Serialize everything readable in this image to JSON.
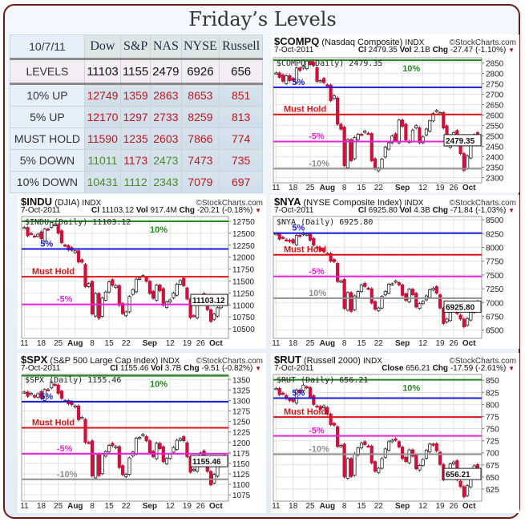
{
  "title": "Friday’s Levels",
  "levels_table": {
    "date": "10/7/11",
    "columns": [
      "Dow",
      "S&P",
      "NAS",
      "NYSE",
      "Russell"
    ],
    "levels_label": "LEVELS",
    "levels": [
      "11103",
      "1155",
      "2479",
      "6926",
      "656"
    ],
    "rows": [
      {
        "label": "10% UP",
        "values": [
          "12749",
          "1359",
          "2863",
          "8653",
          "851"
        ],
        "colors": [
          "red",
          "red",
          "red",
          "red",
          "red"
        ]
      },
      {
        "label": "5% UP",
        "values": [
          "12170",
          "1297",
          "2733",
          "8259",
          "813"
        ],
        "colors": [
          "red",
          "red",
          "red",
          "red",
          "red"
        ]
      },
      {
        "label": "MUST HOLD",
        "values": [
          "11590",
          "1235",
          "2603",
          "7866",
          "774"
        ],
        "colors": [
          "red",
          "red",
          "red",
          "red",
          "red"
        ]
      },
      {
        "label": "5% DOWN",
        "values": [
          "11011",
          "1173",
          "2473",
          "7473",
          "735"
        ],
        "colors": [
          "green",
          "red",
          "green",
          "red",
          "red"
        ]
      },
      {
        "label": "10% DOWN",
        "values": [
          "10431",
          "1112",
          "2343",
          "7079",
          "697"
        ],
        "colors": [
          "green",
          "green",
          "green",
          "red",
          "red"
        ]
      }
    ]
  },
  "colors": {
    "up10": "#1e8a1e",
    "up5": "#1a1ae0",
    "must_hold": "#e01414",
    "down5": "#ee22dd",
    "down10": "#909090",
    "candle_down": "#d0103a"
  },
  "chart_data": [
    {
      "type": "candlestick",
      "symbol": "$COMPQ",
      "name": "(Nasdaq Composite)",
      "exchange": "INDX",
      "source": "©StockCharts.com",
      "date": "7-Oct-2011",
      "close_label": "Cl",
      "close": "2479.35",
      "vol_label": "Vol",
      "vol": "2.1B",
      "chg_label": "Chg",
      "chg": "-27.47 (-1.10%)",
      "legend": "$COMPQ (Daily) 2479.35",
      "last_label": "2479.35",
      "ylim": [
        2275,
        2875
      ],
      "yticks": [
        2300,
        2350,
        2400,
        2450,
        2500,
        2550,
        2600,
        2650,
        2700,
        2750,
        2800,
        2850
      ],
      "levels": [
        {
          "label": "10%",
          "value": 2863,
          "key": "up10"
        },
        {
          "label": "5%",
          "value": 2733,
          "key": "up5"
        },
        {
          "label": "Must Hold",
          "value": 2603,
          "key": "must_hold"
        },
        {
          "label": "-5%",
          "value": 2473,
          "key": "down5"
        },
        {
          "label": "-10%",
          "value": 2343,
          "key": "down10"
        }
      ],
      "closes": [
        2802,
        2781,
        2762,
        2789,
        2765,
        2766,
        2826,
        2814,
        2834,
        2859,
        2842,
        2839,
        2762,
        2765,
        2756,
        2744,
        2669,
        2693,
        2556,
        2532,
        2357,
        2482,
        2381,
        2492,
        2508,
        2507,
        2523,
        2511,
        2381,
        2342,
        2345,
        2389,
        2446,
        2467,
        2500,
        2476,
        2576,
        2546,
        2480,
        2474,
        2528,
        2549,
        2467,
        2495,
        2533,
        2572,
        2607,
        2622,
        2612,
        2538,
        2455,
        2483,
        2516,
        2491,
        2415,
        2335,
        2404,
        2460,
        2506,
        2479
      ]
    },
    {
      "type": "candlestick",
      "symbol": "$INDU",
      "name": "(DJIA)",
      "exchange": "INDX",
      "source": "©StockCharts.com",
      "date": "7-Oct-2011",
      "close_label": "Cl",
      "close": "11103.12",
      "vol_label": "Vol",
      "vol": "917.4M",
      "chg_label": "Chg",
      "chg": "-20.21 (-0.18%)",
      "legend": "$INDU (Daily) 11103.12",
      "last_label": "11103.12",
      "ylim": [
        10300,
        12850
      ],
      "yticks": [
        10500,
        10750,
        11000,
        11250,
        11500,
        11750,
        12000,
        12250,
        12500,
        12750
      ],
      "levels": [
        {
          "label": "10%",
          "value": 12749,
          "key": "up10"
        },
        {
          "label": "5%",
          "value": 12170,
          "key": "up5"
        },
        {
          "label": "Must Hold",
          "value": 11590,
          "key": "must_hold"
        },
        {
          "label": "-5%",
          "value": 11011,
          "key": "down5"
        }
      ],
      "closes": [
        12620,
        12446,
        12492,
        12437,
        12479,
        12385,
        12588,
        12572,
        12725,
        12681,
        12502,
        12302,
        12240,
        12150,
        12143,
        12132,
        11897,
        11896,
        11384,
        11445,
        10810,
        11240,
        10720,
        11143,
        11270,
        11482,
        11410,
        11405,
        10990,
        10817,
        10855,
        11177,
        11320,
        11539,
        11559,
        11614,
        11494,
        11240,
        11139,
        11415,
        11296,
        10992,
        11062,
        11105,
        11247,
        11433,
        11510,
        11401,
        11125,
        10734,
        10771,
        11044,
        11191,
        11010,
        10900,
        10655,
        10809,
        10940,
        11123,
        11103
      ]
    },
    {
      "type": "candlestick",
      "symbol": "$NYA",
      "name": "(NYSE Composite Index)",
      "exchange": "INDX",
      "source": "©StockCharts.com",
      "date": "7-Oct-2011",
      "close_label": "Cl",
      "close": "6925.80",
      "vol_label": "Vol",
      "vol": "4.3B",
      "chg_label": "Chg",
      "chg": "-71.84 (-1.03%)",
      "legend": "$NYA (Daily) 6925.80",
      "last_label": "6925.80",
      "ylim": [
        6350,
        8560
      ],
      "yticks": [
        6500,
        6750,
        7000,
        7250,
        7500,
        7750,
        8000,
        8250,
        8500
      ],
      "levels": [
        {
          "label": "5%",
          "value": 8259,
          "key": "up5"
        },
        {
          "label": "Must Hold",
          "value": 7866,
          "key": "must_hold"
        },
        {
          "label": "-5%",
          "value": 7473,
          "key": "down5"
        },
        {
          "label": "10%",
          "value": 7079,
          "key": "down10"
        }
      ],
      "closes": [
        8250,
        8150,
        8170,
        8130,
        8110,
        8080,
        8220,
        8200,
        8260,
        8240,
        8130,
        8040,
        7990,
        7940,
        7920,
        7890,
        7750,
        7740,
        7380,
        7390,
        6890,
        7180,
        6840,
        7120,
        7200,
        7320,
        7290,
        7250,
        6990,
        6880,
        6900,
        7110,
        7200,
        7330,
        7340,
        7390,
        7320,
        7130,
        7040,
        7240,
        7140,
        6920,
        6980,
        7020,
        7120,
        7230,
        7260,
        7170,
        6900,
        6620,
        6700,
        6880,
        6960,
        6800,
        6700,
        6560,
        6710,
        6820,
        6996,
        6926
      ]
    },
    {
      "type": "candlestick",
      "symbol": "$SPX",
      "name": "(S&P 500 Large Cap Index)",
      "exchange": "INDX",
      "source": "©StockCharts.com",
      "date": "7-Oct-2011",
      "close_label": "Cl",
      "close": "1155.46",
      "vol_label": "Vol",
      "vol": "3.7B",
      "chg_label": "Chg",
      "chg": "-9.51 (-0.82%)",
      "legend": "$SPX (Daily) 1155.46",
      "last_label": "1155.46",
      "ylim": [
        1060,
        1362
      ],
      "yticks": [
        1075,
        1100,
        1125,
        1150,
        1175,
        1200,
        1225,
        1250,
        1275,
        1300,
        1325,
        1350
      ],
      "levels": [
        {
          "label": "10%",
          "value": 1359,
          "key": "up10"
        },
        {
          "label": "5%",
          "value": 1297,
          "key": "up5"
        },
        {
          "label": "Must Hold",
          "value": 1235,
          "key": "must_hold"
        },
        {
          "label": "-5%",
          "value": 1173,
          "key": "down5"
        },
        {
          "label": "-10%",
          "value": 1112,
          "key": "down10"
        }
      ],
      "closes": [
        1320,
        1310,
        1317,
        1308,
        1316,
        1305,
        1326,
        1325,
        1344,
        1337,
        1317,
        1305,
        1300,
        1292,
        1290,
        1287,
        1254,
        1260,
        1200,
        1199,
        1120,
        1172,
        1121,
        1172,
        1178,
        1193,
        1192,
        1190,
        1140,
        1123,
        1124,
        1163,
        1177,
        1210,
        1212,
        1219,
        1204,
        1174,
        1166,
        1198,
        1185,
        1154,
        1162,
        1172,
        1188,
        1205,
        1209,
        1204,
        1166,
        1129,
        1136,
        1162,
        1175,
        1160,
        1131,
        1099,
        1124,
        1144,
        1164,
        1155
      ]
    },
    {
      "type": "candlestick",
      "symbol": "$RUT",
      "name": "(Russell 2000)",
      "exchange": "INDX",
      "source": "©StockCharts.com",
      "date": "7-Oct-2011",
      "close_label": "Close",
      "close": "656.21",
      "vol_label": "",
      "vol": "",
      "chg_label": "Chg",
      "chg": "-17.59 (-2.61%)",
      "legend": "$RUT (Daily) 656.21",
      "last_label": "656.21",
      "ylim": [
        600,
        862
      ],
      "yticks": [
        625,
        650,
        675,
        700,
        725,
        750,
        775,
        800,
        825,
        850
      ],
      "levels": [
        {
          "label": "10%",
          "value": 851,
          "key": "up10"
        },
        {
          "label": "5%",
          "value": 813,
          "key": "up5"
        },
        {
          "label": "Must Hold",
          "value": 774,
          "key": "must_hold"
        },
        {
          "label": "-5%",
          "value": 735,
          "key": "down5"
        },
        {
          "label": "-10%",
          "value": 697,
          "key": "down10"
        }
      ],
      "closes": [
        833,
        820,
        822,
        812,
        808,
        806,
        830,
        825,
        840,
        835,
        815,
        800,
        796,
        790,
        797,
        780,
        758,
        757,
        713,
        715,
        650,
        688,
        651,
        698,
        710,
        720,
        717,
        714,
        679,
        662,
        668,
        688,
        708,
        723,
        726,
        726,
        712,
        688,
        682,
        706,
        693,
        667,
        674,
        686,
        705,
        718,
        716,
        704,
        676,
        644,
        655,
        677,
        681,
        644,
        630,
        609,
        632,
        651,
        673,
        656
      ]
    }
  ],
  "x_axis": {
    "labels": [
      "11",
      "18",
      "25",
      "Aug",
      "8",
      "15",
      "22",
      "Sep",
      "12",
      "19",
      "26",
      "Oct"
    ],
    "index": [
      0,
      5,
      10,
      15,
      20,
      25,
      30,
      37,
      43,
      48,
      52,
      55
    ]
  }
}
